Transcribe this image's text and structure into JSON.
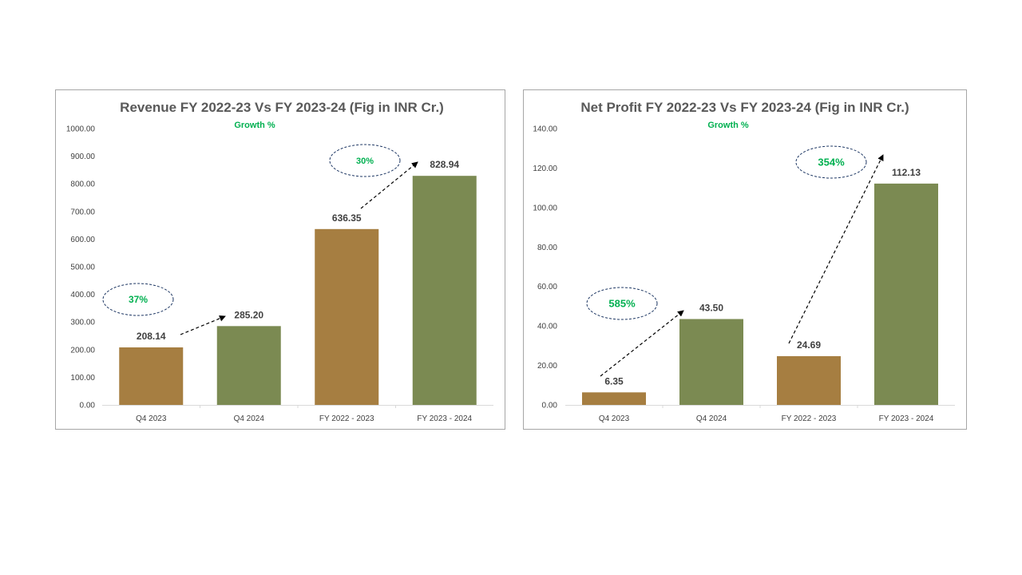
{
  "colors": {
    "brown": "#a67e41",
    "green": "#7b8a52",
    "growth": "#00b050",
    "ellipse": "#1f3864"
  },
  "chart_data": [
    {
      "type": "bar",
      "title": "Revenue FY 2022-23 Vs FY 2023-24 (Fig in INR Cr.)",
      "subtitle": "Growth %",
      "categories": [
        "Q4 2023",
        "Q4 2024",
        "FY 2022 - 2023",
        "FY 2023 - 2024"
      ],
      "values": [
        208.14,
        285.2,
        636.35,
        828.94
      ],
      "value_labels": [
        "208.14",
        "285.20",
        "636.35",
        "828.94"
      ],
      "ylim": [
        0,
        1000
      ],
      "yticks": [
        "0.00",
        "100.00",
        "200.00",
        "300.00",
        "400.00",
        "500.00",
        "600.00",
        "700.00",
        "800.00",
        "900.00",
        "1000.00"
      ],
      "growth_annotations": [
        {
          "label": "37%",
          "from_index": 0,
          "to_index": 1
        },
        {
          "label": "30%",
          "from_index": 2,
          "to_index": 3
        }
      ]
    },
    {
      "type": "bar",
      "title": "Net Profit FY 2022-23 Vs FY 2023-24 (Fig in INR Cr.)",
      "subtitle": "Growth %",
      "categories": [
        "Q4 2023",
        "Q4 2024",
        "FY 2022 - 2023",
        "FY 2023 - 2024"
      ],
      "values": [
        6.35,
        43.5,
        24.69,
        112.13
      ],
      "value_labels": [
        "6.35",
        "43.50",
        "24.69",
        "112.13"
      ],
      "ylim": [
        0,
        140
      ],
      "yticks": [
        "0.00",
        "20.00",
        "40.00",
        "60.00",
        "80.00",
        "100.00",
        "120.00",
        "140.00"
      ],
      "growth_annotations": [
        {
          "label": "585%",
          "from_index": 0,
          "to_index": 1
        },
        {
          "label": "354%",
          "from_index": 2,
          "to_index": 3
        }
      ]
    }
  ]
}
